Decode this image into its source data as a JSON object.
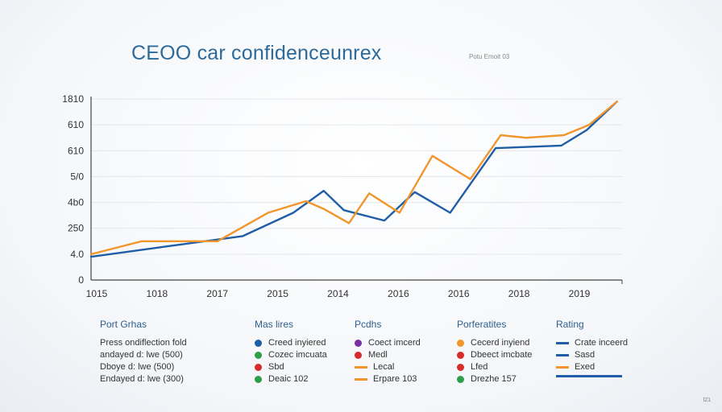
{
  "title": "CEOO car confidenceunrex",
  "subtitle": "Potu Emoit 03",
  "chart_data": {
    "type": "line",
    "title": "CEOO car confidenceunrex",
    "y_tick_labels": [
      "0",
      "4.0",
      "250",
      "4b0",
      "5/0",
      "610",
      "610",
      "1810"
    ],
    "x_tick_labels": [
      "1015",
      "1018",
      "2017",
      "2015",
      "2014",
      "2016",
      "2016",
      "2018",
      "2019"
    ],
    "ylim": [
      0,
      7
    ],
    "xlim": [
      0,
      21
    ],
    "grid": true,
    "series": [
      {
        "color": "#1f5ea6",
        "x": [
          0,
          3,
          6,
          8,
          9.2,
          10,
          11.6,
          12.8,
          14.2,
          16,
          18.6,
          19.6,
          20.8
        ],
        "y": [
          0.9,
          1.3,
          1.7,
          2.6,
          3.45,
          2.7,
          2.3,
          3.4,
          2.6,
          5.1,
          5.2,
          5.8,
          6.9
        ]
      },
      {
        "color": "#f0962d",
        "x": [
          0,
          2,
          4,
          5,
          7,
          8.5,
          9.2,
          10.2,
          11,
          12.2,
          13.5,
          15,
          16.2,
          17.2,
          18.7,
          19.7,
          20.8
        ],
        "y": [
          1.0,
          1.5,
          1.5,
          1.5,
          2.6,
          3.05,
          2.75,
          2.2,
          3.35,
          2.6,
          4.8,
          3.9,
          5.6,
          5.5,
          5.6,
          6.0,
          6.9
        ]
      }
    ]
  },
  "legend": {
    "columns": [
      {
        "header": "Port Grhas",
        "items": [
          {
            "marker": "none",
            "color": "",
            "label": "Press ondiflection fold"
          },
          {
            "marker": "none",
            "color": "",
            "label": "andayed d: lwe (500)"
          },
          {
            "marker": "none",
            "color": "",
            "label": "Dboye d: lwe (500)"
          },
          {
            "marker": "none",
            "color": "",
            "label": "Endayed d: lwe (300)"
          }
        ]
      },
      {
        "header": "Mas lires",
        "items": [
          {
            "marker": "dot",
            "color": "#1f5ea6",
            "label": "Creed inyiered"
          },
          {
            "marker": "dot",
            "color": "#2e9e48",
            "label": "Cozec imcuata"
          },
          {
            "marker": "dot",
            "color": "#d62c2c",
            "label": "Sbd"
          },
          {
            "marker": "dot",
            "color": "#2e9e48",
            "label": "Deaic 102"
          }
        ]
      },
      {
        "header": "Pcdhs",
        "items": [
          {
            "marker": "dot",
            "color": "#7b2fa3",
            "label": "Coect imcerd"
          },
          {
            "marker": "dot",
            "color": "#d62c2c",
            "label": "Medl"
          },
          {
            "marker": "dash",
            "color": "#f0962d",
            "label": "Lecal"
          },
          {
            "marker": "dash",
            "color": "#f0962d",
            "label": "Erpare 103"
          }
        ]
      },
      {
        "header": "Porferatites",
        "items": [
          {
            "marker": "dot",
            "color": "#f0962d",
            "label": "Cecerd inyiend"
          },
          {
            "marker": "dot",
            "color": "#d62c2c",
            "label": "Dbeect imcbate"
          },
          {
            "marker": "dot",
            "color": "#d62c2c",
            "label": "Lfed"
          },
          {
            "marker": "dot",
            "color": "#2e9e48",
            "label": "Drezhe 157"
          }
        ]
      },
      {
        "header": "Rating",
        "items": [
          {
            "marker": "dash",
            "color": "#1f5ea6",
            "label": "Crate inceerd"
          },
          {
            "marker": "dash",
            "color": "#1f5ea6",
            "label": "Sasd"
          },
          {
            "marker": "dash",
            "color": "#f0962d",
            "label": "Exed"
          }
        ]
      }
    ]
  },
  "corner_text": "l21"
}
